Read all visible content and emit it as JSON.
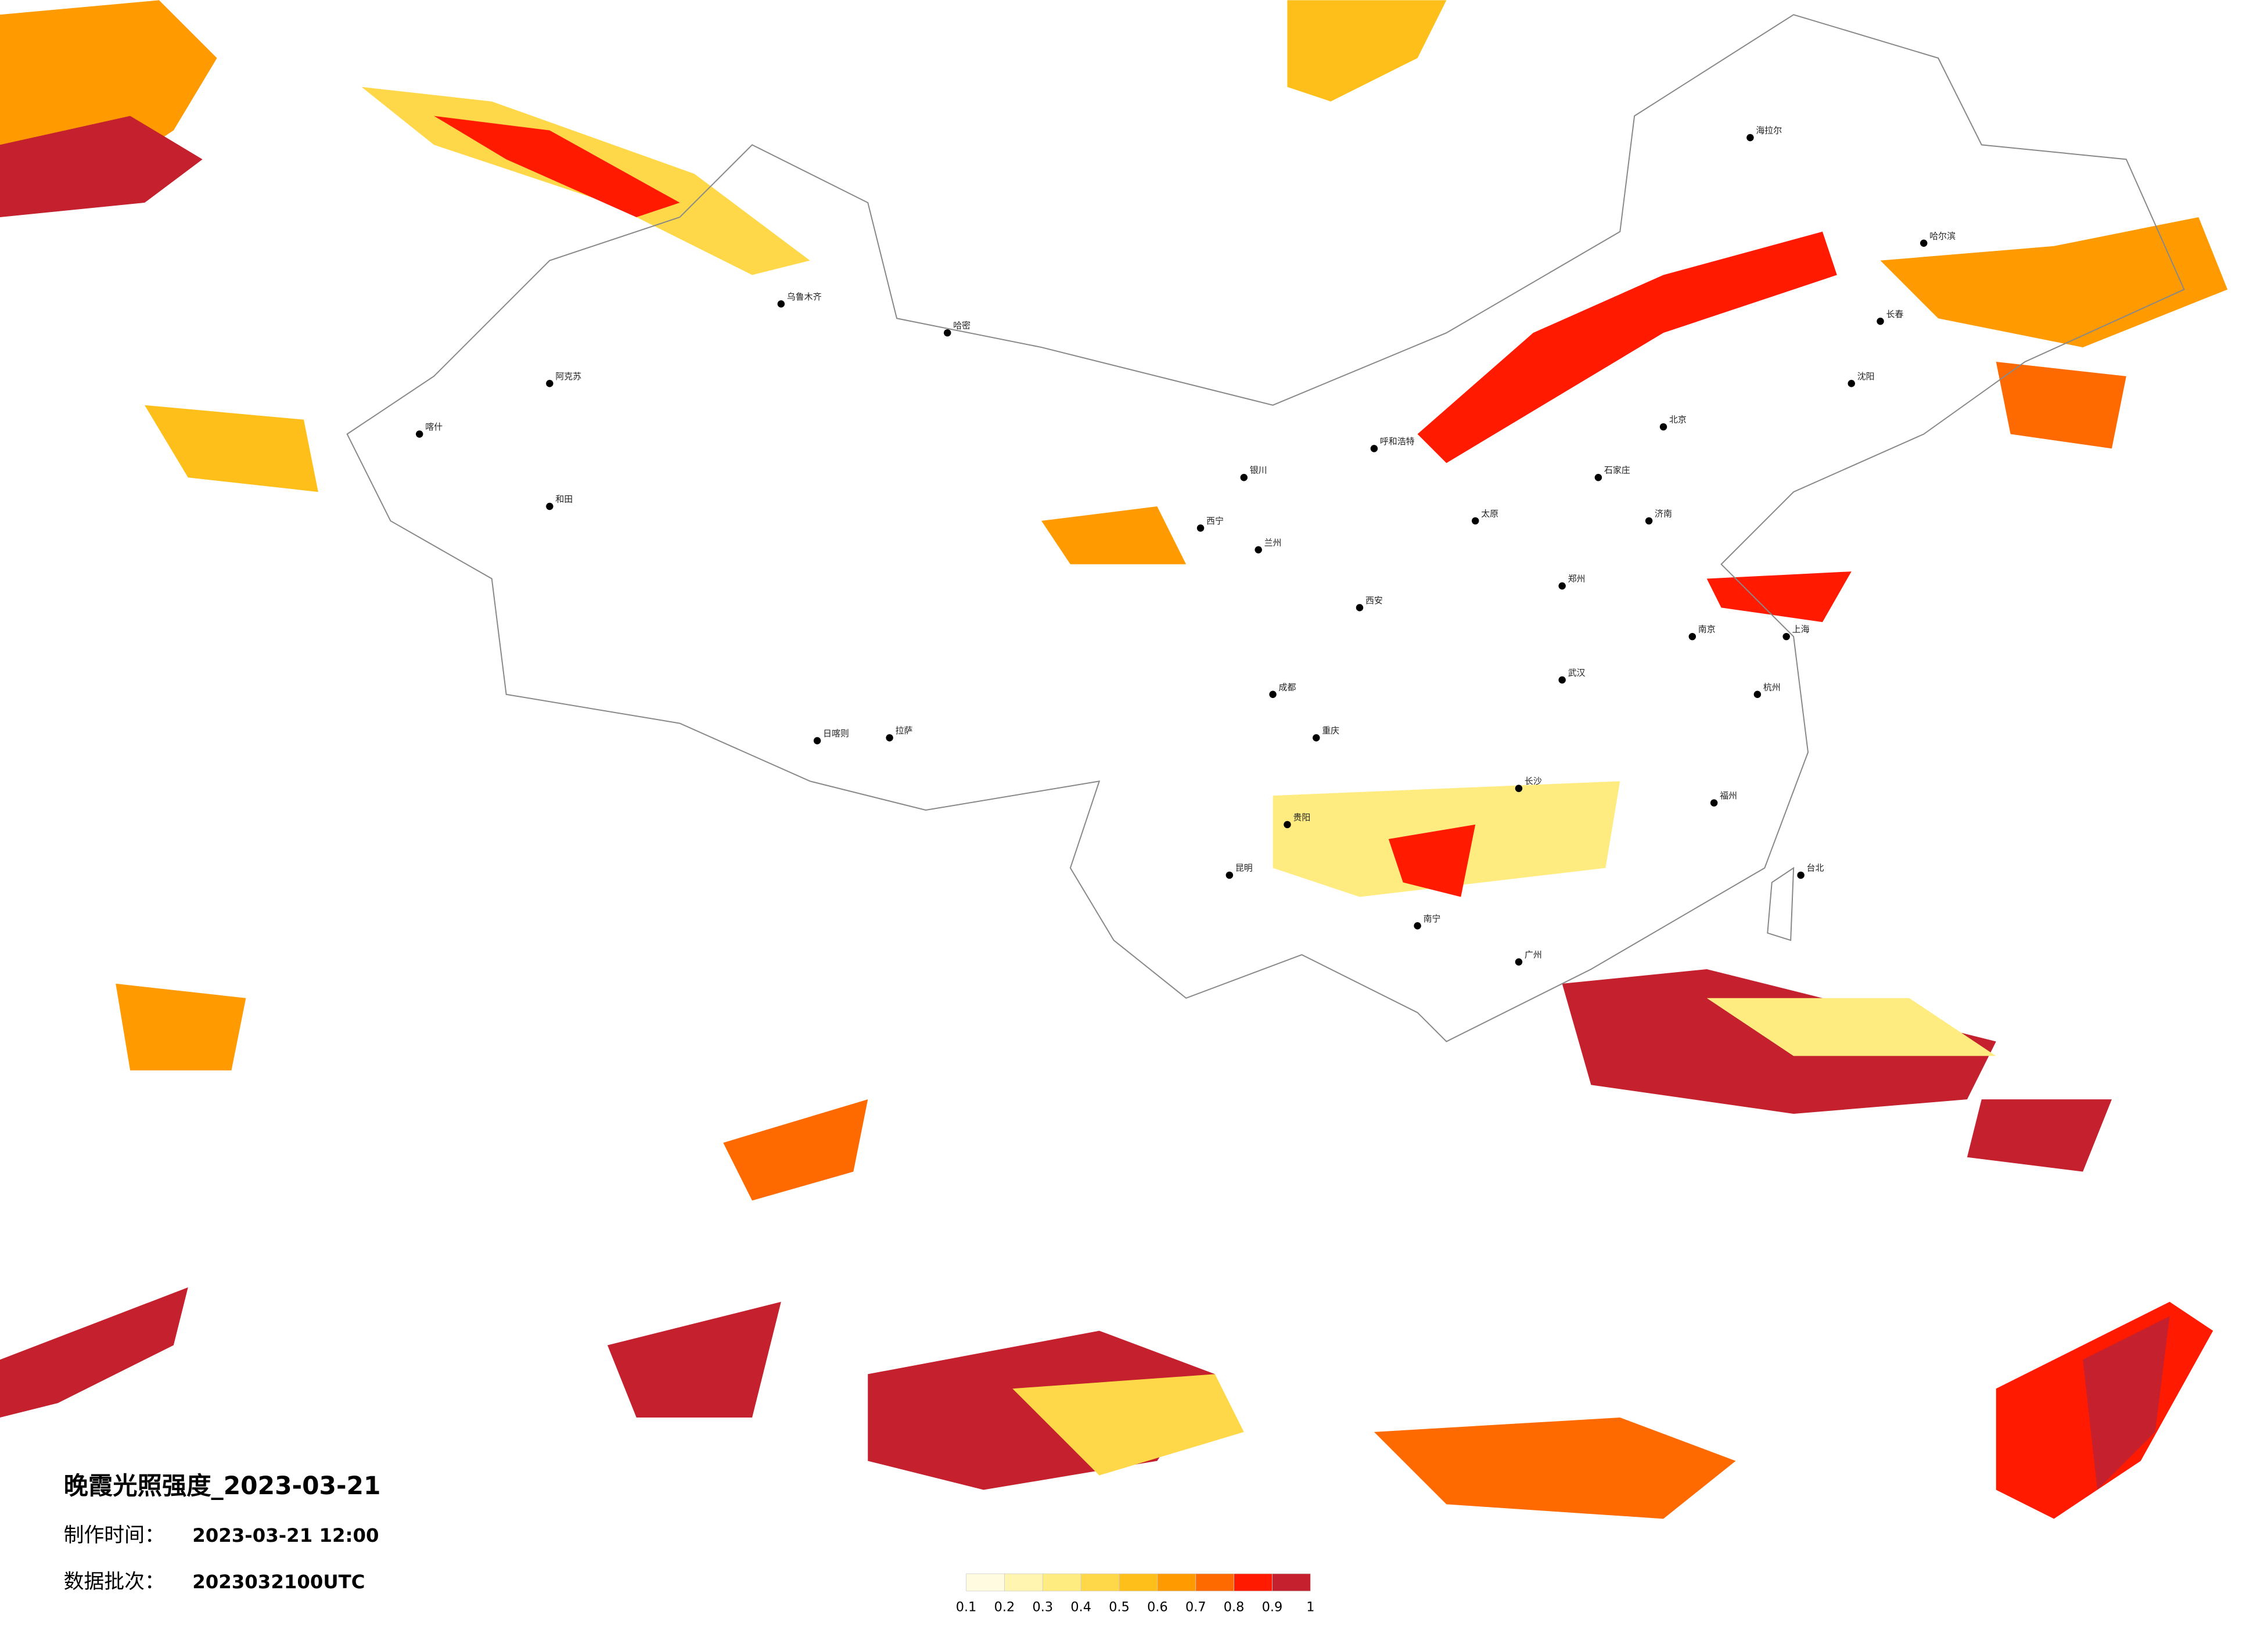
{
  "header": {
    "title": "晚霞光照强度_2023-03-21",
    "made_label": "制作时间：",
    "made_time": "2023-03-21 12:00",
    "batch_label": "数据批次：",
    "batch": "2023032100UTC"
  },
  "legend": {
    "ticks": [
      0.1,
      0.2,
      0.3,
      0.4,
      0.5,
      0.6,
      0.7,
      0.8,
      0.9,
      1
    ],
    "colors": [
      "#fffbe0",
      "#fff4b0",
      "#ffec80",
      "#ffd84a",
      "#ffbf1a",
      "#ff9a00",
      "#ff6a00",
      "#ff1a00",
      "#c4202e"
    ]
  },
  "cities": [
    "海拉尔",
    "哈尔滨",
    "长春",
    "沈阳",
    "北京",
    "石家庄",
    "乌鲁木齐",
    "喀什",
    "阿克苏",
    "和田",
    "哈密",
    "西宁",
    "兰州",
    "拉萨",
    "日喀则",
    "成都",
    "重庆",
    "昆明",
    "贵阳",
    "南宁",
    "广州",
    "长沙",
    "武汉",
    "南京",
    "上海",
    "杭州",
    "福州",
    "台北",
    "郑州",
    "西安",
    "济南",
    "太原",
    "呼和浩特",
    "银川"
  ]
}
